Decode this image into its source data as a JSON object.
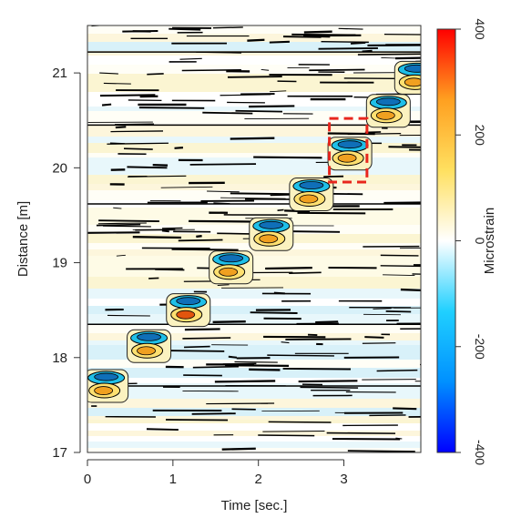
{
  "chart_data": {
    "type": "heatmap",
    "title": "",
    "xlabel": "Time [sec.]",
    "ylabel": "Distance [m]",
    "xlim": [
      0,
      3.9
    ],
    "ylim": [
      17,
      21.5
    ],
    "x_ticks": [
      "0",
      "1",
      "2",
      "3"
    ],
    "x_tick_values": [
      0,
      1,
      2,
      3
    ],
    "y_ticks": [
      "17",
      "18",
      "19",
      "20",
      "21"
    ],
    "y_tick_values": [
      17,
      18,
      19,
      20,
      21
    ],
    "colorbar": {
      "label": "Microstrain",
      "range": [
        -400,
        400
      ],
      "ticks": [
        "-400",
        "-200",
        "0",
        "200",
        "400"
      ],
      "tick_values": [
        -400,
        -200,
        0,
        200,
        400
      ],
      "colors": [
        "#0000ff",
        "#0090ff",
        "#20d0ff",
        "#ffffff",
        "#ffe060",
        "#ffa020",
        "#ff0000"
      ]
    },
    "wheel_events": [
      {
        "time": 0.22,
        "distance": 17.7,
        "peak": 160
      },
      {
        "time": 0.72,
        "distance": 18.12,
        "peak": 150
      },
      {
        "time": 1.18,
        "distance": 18.5,
        "peak": 300
      },
      {
        "time": 1.68,
        "distance": 18.95,
        "peak": 170
      },
      {
        "time": 2.15,
        "distance": 19.3,
        "peak": 180
      },
      {
        "time": 2.62,
        "distance": 19.72,
        "peak": 200
      },
      {
        "time": 3.07,
        "distance": 20.15,
        "peak": 170
      },
      {
        "time": 3.52,
        "distance": 20.6,
        "peak": 160
      },
      {
        "time": 3.85,
        "distance": 20.95,
        "peak": 140
      }
    ],
    "highlight_box": {
      "time_range": [
        2.83,
        3.27
      ],
      "distance_range": [
        19.85,
        20.52
      ],
      "color": "#e8261d"
    }
  }
}
